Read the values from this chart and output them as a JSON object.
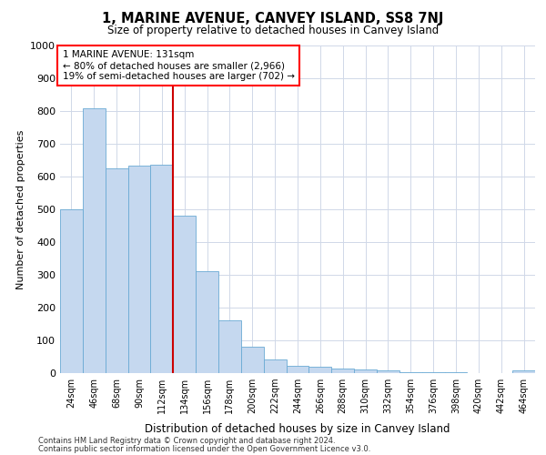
{
  "title": "1, MARINE AVENUE, CANVEY ISLAND, SS8 7NJ",
  "subtitle": "Size of property relative to detached houses in Canvey Island",
  "xlabel": "Distribution of detached houses by size in Canvey Island",
  "ylabel": "Number of detached properties",
  "footnote1": "Contains HM Land Registry data © Crown copyright and database right 2024.",
  "footnote2": "Contains public sector information licensed under the Open Government Licence v3.0.",
  "annotation_line1": "1 MARINE AVENUE: 131sqm",
  "annotation_line2": "← 80% of detached houses are smaller (2,966)",
  "annotation_line3": "19% of semi-detached houses are larger (702) →",
  "categories": [
    "24sqm",
    "46sqm",
    "68sqm",
    "90sqm",
    "112sqm",
    "134sqm",
    "156sqm",
    "178sqm",
    "200sqm",
    "222sqm",
    "244sqm",
    "266sqm",
    "288sqm",
    "310sqm",
    "332sqm",
    "354sqm",
    "376sqm",
    "398sqm",
    "420sqm",
    "442sqm",
    "464sqm"
  ],
  "values": [
    500,
    808,
    625,
    632,
    635,
    480,
    310,
    160,
    80,
    43,
    22,
    20,
    15,
    10,
    8,
    4,
    2,
    2,
    1,
    0,
    8
  ],
  "bar_color": "#c5d8ef",
  "bar_edge_color": "#6aaad4",
  "marker_color": "#cc0000",
  "grid_color": "#d0d8e8",
  "background_color": "#ffffff",
  "ylim": [
    0,
    1000
  ],
  "yticks": [
    0,
    100,
    200,
    300,
    400,
    500,
    600,
    700,
    800,
    900,
    1000
  ],
  "marker_bar_index": 5
}
